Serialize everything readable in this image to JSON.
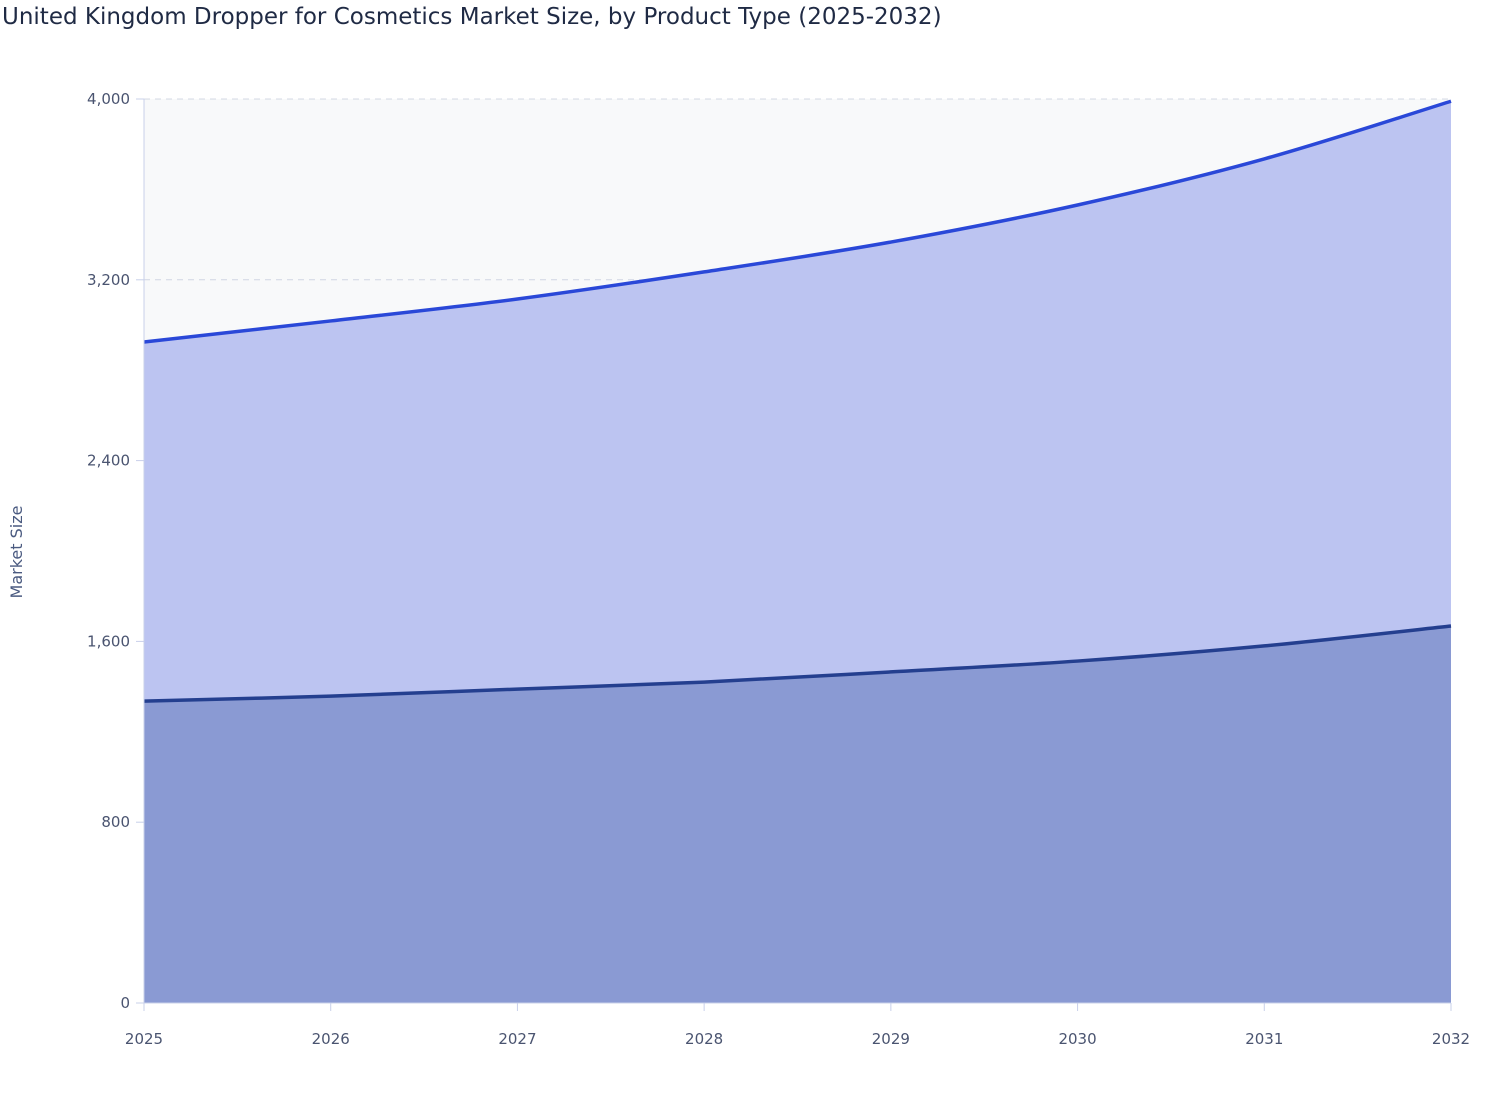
{
  "chart_data": {
    "type": "area",
    "stacked": true,
    "title": "United Kingdom Dropper for Cosmetics Market Size, by Product Type (2025-2032)",
    "xlabel": "",
    "ylabel": "Market Size",
    "x": [
      "2025",
      "2026",
      "2027",
      "2028",
      "2029",
      "2030",
      "2031",
      "2032"
    ],
    "ylim": [
      0,
      4000
    ],
    "yticks": [
      0,
      800,
      1600,
      2400,
      3200,
      4000
    ],
    "ytick_labels": [
      "0",
      "800",
      "1,600",
      "2,400",
      "3,200",
      "4,000"
    ],
    "grid": true,
    "legend": "none",
    "series": [
      {
        "values": [
          1336,
          1358,
          1389,
          1420,
          1465,
          1513,
          1580,
          1668
        ],
        "fill": "#8a9ad3",
        "line": "#243f8f"
      },
      {
        "values": [
          1589,
          1660,
          1726,
          1815,
          1902,
          2018,
          2155,
          2322
        ],
        "fill": "#bcc4f1",
        "line": "#2a48d8"
      }
    ],
    "plot_background": "#f8f9fa"
  }
}
